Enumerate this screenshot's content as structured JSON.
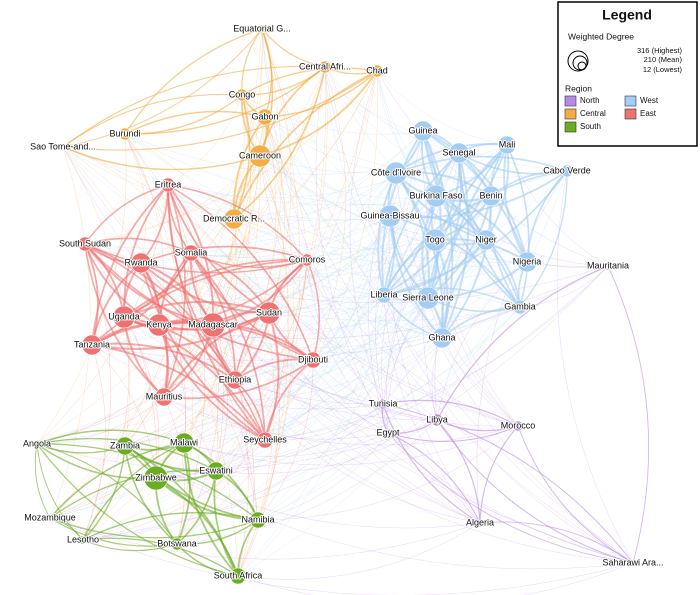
{
  "legend": {
    "title": "Legend",
    "size_title": "Weighted Degree",
    "size_entries": [
      "316 (Highest)",
      "210 (Mean)",
      "12 (Lowest)"
    ],
    "region_title": "Region",
    "regions": [
      {
        "name": "North",
        "color": "#b78ae8"
      },
      {
        "name": "West",
        "color": "#a3cdf3"
      },
      {
        "name": "Central",
        "color": "#f4ad45"
      },
      {
        "name": "East",
        "color": "#f07171"
      },
      {
        "name": "South",
        "color": "#6aac22"
      }
    ]
  },
  "nodes": [
    {
      "label": "Mauritania",
      "region": "North"
    },
    {
      "label": "Morocco",
      "region": "North"
    },
    {
      "label": "Algeria",
      "region": "North"
    },
    {
      "label": "Libya",
      "region": "North"
    },
    {
      "label": "Tunisia",
      "region": "North"
    },
    {
      "label": "Egypt",
      "region": "North"
    },
    {
      "label": "Saharawi Ara...",
      "region": "North"
    },
    {
      "label": "Guinea",
      "region": "West"
    },
    {
      "label": "Mali",
      "region": "West"
    },
    {
      "label": "Senegal",
      "region": "West"
    },
    {
      "label": "Cabo Verde",
      "region": "West"
    },
    {
      "label": "Côte d'Ivoire",
      "region": "West"
    },
    {
      "label": "Burkina Faso",
      "region": "West"
    },
    {
      "label": "Benin",
      "region": "West"
    },
    {
      "label": "Guinea-Bissau",
      "region": "West"
    },
    {
      "label": "Togo",
      "region": "West"
    },
    {
      "label": "Niger",
      "region": "West"
    },
    {
      "label": "Nigeria",
      "region": "West"
    },
    {
      "label": "Liberia",
      "region": "West"
    },
    {
      "label": "Sierra Leone",
      "region": "West"
    },
    {
      "label": "Gambia",
      "region": "West"
    },
    {
      "label": "Ghana",
      "region": "West"
    },
    {
      "label": "Equatorial G...",
      "region": "Central"
    },
    {
      "label": "Central Afri...",
      "region": "Central"
    },
    {
      "label": "Chad",
      "region": "Central"
    },
    {
      "label": "Congo",
      "region": "Central"
    },
    {
      "label": "Gabon",
      "region": "Central"
    },
    {
      "label": "Burundi",
      "region": "Central"
    },
    {
      "label": "Cameroon",
      "region": "Central"
    },
    {
      "label": "Democratic R...",
      "region": "Central"
    },
    {
      "label": "Sao Tome-and...",
      "region": "Central"
    },
    {
      "label": "Eritrea",
      "region": "East"
    },
    {
      "label": "South Sudan",
      "region": "East"
    },
    {
      "label": "Rwanda",
      "region": "East"
    },
    {
      "label": "Somalia",
      "region": "East"
    },
    {
      "label": "Comoros",
      "region": "East"
    },
    {
      "label": "Uganda",
      "region": "East"
    },
    {
      "label": "Kenya",
      "region": "East"
    },
    {
      "label": "Sudan",
      "region": "East"
    },
    {
      "label": "Madagascar",
      "region": "East"
    },
    {
      "label": "Tanzania",
      "region": "East"
    },
    {
      "label": "Djibouti",
      "region": "East"
    },
    {
      "label": "Ethiopia",
      "region": "East"
    },
    {
      "label": "Mauritius",
      "region": "East"
    },
    {
      "label": "Seychelles",
      "region": "East"
    },
    {
      "label": "Angola",
      "region": "South"
    },
    {
      "label": "Zambia",
      "region": "South"
    },
    {
      "label": "Malawi",
      "region": "South"
    },
    {
      "label": "Zimbabwe",
      "region": "South"
    },
    {
      "label": "Eswatini",
      "region": "South"
    },
    {
      "label": "Mozambique",
      "region": "South"
    },
    {
      "label": "Namibia",
      "region": "South"
    },
    {
      "label": "Lesotho",
      "region": "South"
    },
    {
      "label": "Botswana",
      "region": "South"
    },
    {
      "label": "South Africa",
      "region": "South"
    }
  ]
}
